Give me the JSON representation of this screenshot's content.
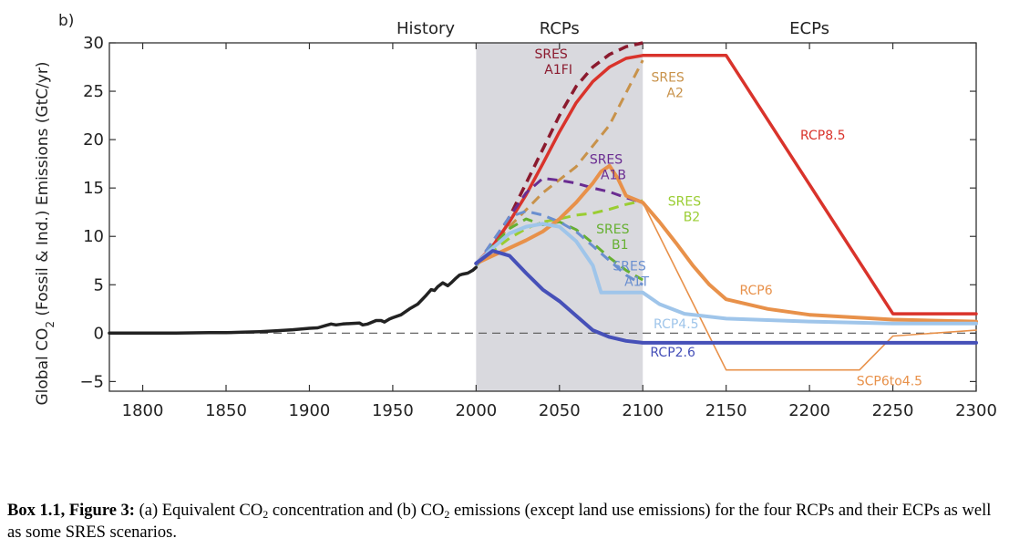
{
  "chart_data": {
    "type": "line",
    "panel_label": "b)",
    "ylabel_parts": [
      "Global CO",
      "2",
      " (Fossil & Ind.) Emissions (GtC/yr)"
    ],
    "xlim": [
      1780,
      2300
    ],
    "ylim": [
      -6,
      30
    ],
    "x_ticks": [
      1800,
      1850,
      1900,
      1950,
      2000,
      2050,
      2100,
      2150,
      2200,
      2250,
      2300
    ],
    "y_ticks": [
      -5,
      0,
      5,
      10,
      15,
      20,
      25,
      30
    ],
    "y_tick_labels": [
      "−5",
      "0",
      "5",
      "10",
      "15",
      "20",
      "25",
      "30"
    ],
    "regions": [
      {
        "label": "History",
        "x_start": 1780,
        "x_end": 2000,
        "shaded": false
      },
      {
        "label": "RCPs",
        "x_start": 2000,
        "x_end": 2100,
        "shaded": true,
        "shade_color": "#d9d9de"
      },
      {
        "label": "ECPs",
        "x_start": 2100,
        "x_end": 2300,
        "shaded": false
      }
    ],
    "zero_line": {
      "y": 0,
      "style": "dashed"
    },
    "series": [
      {
        "name": "History",
        "color": "#222222",
        "style": "solid",
        "width": 3.5,
        "x": [
          1780,
          1800,
          1820,
          1840,
          1850,
          1860,
          1870,
          1880,
          1890,
          1900,
          1905,
          1910,
          1913,
          1916,
          1920,
          1925,
          1930,
          1932,
          1935,
          1940,
          1943,
          1945,
          1948,
          1950,
          1955,
          1960,
          1965,
          1970,
          1973,
          1975,
          1977,
          1980,
          1983,
          1985,
          1988,
          1990,
          1992,
          1995,
          1998,
          2000
        ],
        "y": [
          0,
          0,
          0,
          0.05,
          0.05,
          0.1,
          0.15,
          0.25,
          0.35,
          0.5,
          0.55,
          0.8,
          0.95,
          0.85,
          0.95,
          1.0,
          1.05,
          0.85,
          0.95,
          1.3,
          1.3,
          1.15,
          1.45,
          1.6,
          1.9,
          2.5,
          3.0,
          3.9,
          4.5,
          4.4,
          4.8,
          5.2,
          4.9,
          5.2,
          5.7,
          6.0,
          6.1,
          6.2,
          6.5,
          6.8
        ]
      },
      {
        "name": "SRES A1FI",
        "color": "#8b1a2e",
        "style": "dashed",
        "width": 3.5,
        "x": [
          2000,
          2010,
          2020,
          2030,
          2040,
          2050,
          2060,
          2070,
          2080,
          2090,
          2100
        ],
        "y": [
          7.0,
          9.0,
          12.0,
          15.5,
          19.0,
          22.5,
          25.5,
          27.5,
          28.8,
          29.6,
          30.0
        ]
      },
      {
        "name": "SRES A2",
        "color": "#c8924a",
        "style": "dashed",
        "width": 3,
        "x": [
          2000,
          2020,
          2040,
          2060,
          2080,
          2100
        ],
        "y": [
          7.2,
          11.0,
          14.5,
          17.2,
          21.5,
          28.2
        ]
      },
      {
        "name": "RCP8.5",
        "color": "#d9332b",
        "style": "solid",
        "width": 3.5,
        "x": [
          2000,
          2010,
          2020,
          2030,
          2040,
          2050,
          2060,
          2070,
          2080,
          2090,
          2100,
          2150,
          2250,
          2300
        ],
        "y": [
          7.2,
          9.0,
          11.5,
          14.3,
          17.5,
          20.8,
          23.8,
          26.0,
          27.5,
          28.4,
          28.7,
          28.7,
          2.0,
          2.0
        ]
      },
      {
        "name": "SRES A1B",
        "color": "#6a2c91",
        "style": "dashed",
        "width": 3,
        "x": [
          2000,
          2010,
          2020,
          2030,
          2040,
          2050,
          2060,
          2070,
          2080,
          2090,
          2100
        ],
        "y": [
          7.0,
          9.5,
          12.0,
          14.5,
          16.0,
          15.8,
          15.5,
          15.0,
          14.6,
          14.0,
          13.5
        ]
      },
      {
        "name": "SRES B2",
        "color": "#9acd32",
        "style": "dashed",
        "width": 3,
        "x": [
          2000,
          2010,
          2020,
          2030,
          2040,
          2050,
          2060,
          2070,
          2080,
          2090,
          2100
        ],
        "y": [
          7.0,
          8.5,
          9.8,
          10.8,
          11.5,
          11.8,
          12.2,
          12.4,
          12.8,
          13.3,
          13.7
        ]
      },
      {
        "name": "SRES B1",
        "color": "#66b032",
        "style": "dashed",
        "width": 3,
        "x": [
          2000,
          2010,
          2020,
          2030,
          2040,
          2050,
          2060,
          2070,
          2080,
          2090,
          2100
        ],
        "y": [
          7.0,
          9.0,
          10.8,
          11.8,
          11.2,
          11.5,
          10.7,
          9.3,
          7.8,
          6.5,
          5.5
        ]
      },
      {
        "name": "SRES A1T",
        "color": "#6a8fd0",
        "style": "dashed",
        "width": 3,
        "x": [
          2000,
          2010,
          2020,
          2030,
          2040,
          2050,
          2060,
          2070,
          2080,
          2090,
          2100
        ],
        "y": [
          7.0,
          9.5,
          12.0,
          12.6,
          12.2,
          11.5,
          10.5,
          9.0,
          7.5,
          6.0,
          5.0
        ]
      },
      {
        "name": "RCP6",
        "color": "#e8914a",
        "style": "solid",
        "width": 4,
        "x": [
          2000,
          2010,
          2020,
          2030,
          2040,
          2050,
          2060,
          2070,
          2075,
          2080,
          2085,
          2090,
          2100,
          2110,
          2120,
          2130,
          2140,
          2150,
          2175,
          2200,
          2250,
          2300
        ],
        "y": [
          7.2,
          8.0,
          8.8,
          9.6,
          10.5,
          11.8,
          13.5,
          15.5,
          16.7,
          17.3,
          16.0,
          14.2,
          13.5,
          11.5,
          9.3,
          7.0,
          5.0,
          3.5,
          2.5,
          1.9,
          1.4,
          1.2
        ]
      },
      {
        "name": "SCP6to4.5",
        "color": "#e8914a",
        "style": "solid",
        "width": 1.6,
        "x": [
          2100,
          2150,
          2230,
          2250,
          2300
        ],
        "y": [
          13.5,
          -3.8,
          -3.8,
          -0.3,
          0.3
        ]
      },
      {
        "name": "RCP4.5",
        "color": "#9fc5ea",
        "style": "solid",
        "width": 4,
        "x": [
          2000,
          2010,
          2020,
          2030,
          2040,
          2050,
          2060,
          2070,
          2075,
          2100,
          2110,
          2125,
          2150,
          2200,
          2250,
          2300
        ],
        "y": [
          7.2,
          8.8,
          10.3,
          11.0,
          11.3,
          11.0,
          9.5,
          7.0,
          4.2,
          4.2,
          3.0,
          2.0,
          1.5,
          1.2,
          1.0,
          1.0
        ]
      },
      {
        "name": "RCP2.6",
        "color": "#4650b8",
        "style": "solid",
        "width": 4,
        "x": [
          2000,
          2010,
          2020,
          2030,
          2040,
          2050,
          2060,
          2070,
          2080,
          2090,
          2100,
          2300
        ],
        "y": [
          7.2,
          8.5,
          8.0,
          6.2,
          4.5,
          3.3,
          1.8,
          0.3,
          -0.4,
          -0.8,
          -1.0,
          -1.0
        ]
      }
    ],
    "annotations": [
      {
        "lines": [
          "SRES",
          "A1FI"
        ],
        "color": "#8b1a2e",
        "x": 2045,
        "y": 28.4,
        "anchor": "middle"
      },
      {
        "lines": [
          "SRES",
          "A2"
        ],
        "color": "#c8924a",
        "x": 2115,
        "y": 26.0,
        "anchor": "middle"
      },
      {
        "lines": [
          "RCP8.5"
        ],
        "color": "#d9332b",
        "x": 2208,
        "y": 20.0,
        "anchor": "middle"
      },
      {
        "lines": [
          "SRES",
          "A1B"
        ],
        "color": "#6a2c91",
        "x": 2078,
        "y": 17.5,
        "anchor": "middle"
      },
      {
        "lines": [
          "SRES",
          "B2"
        ],
        "color": "#9acd32",
        "x": 2125,
        "y": 13.2,
        "anchor": "middle"
      },
      {
        "lines": [
          "SRES",
          "B1"
        ],
        "color": "#66b032",
        "x": 2082,
        "y": 10.3,
        "anchor": "middle"
      },
      {
        "lines": [
          "SRES",
          "A1T"
        ],
        "color": "#6a8fd0",
        "x": 2092,
        "y": 6.5,
        "anchor": "middle"
      },
      {
        "lines": [
          "RCP6"
        ],
        "color": "#e8914a",
        "x": 2168,
        "y": 4.0,
        "anchor": "middle"
      },
      {
        "lines": [
          "RCP4.5"
        ],
        "color": "#9fc5ea",
        "x": 2120,
        "y": 0.5,
        "anchor": "middle"
      },
      {
        "lines": [
          "RCP2.6"
        ],
        "color": "#4650b8",
        "x": 2118,
        "y": -2.4,
        "anchor": "middle"
      },
      {
        "lines": [
          "SCP6to4.5"
        ],
        "color": "#e8914a",
        "x": 2248,
        "y": -5.4,
        "anchor": "middle"
      }
    ]
  },
  "caption": {
    "label": "Box 1.1, Figure 3:",
    "t1": " (a) Equivalent CO",
    "sub1": "2",
    "t2": " concentration and (b) CO",
    "sub2": "2",
    "t3": " emissions (except land use emissions) for the four RCPs and their ECPs as well as some SRES scenarios."
  }
}
